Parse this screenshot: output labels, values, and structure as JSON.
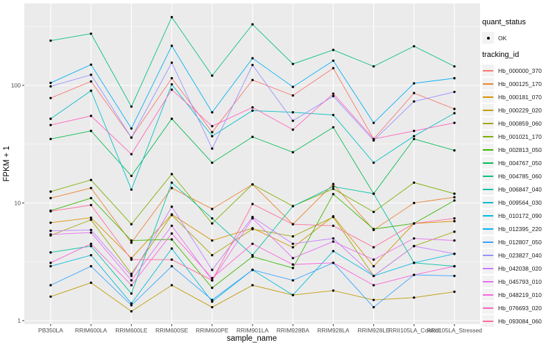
{
  "figure": {
    "background": "#FFFFFF",
    "panel_background": "#EBEBEB",
    "grid_color": "#FFFFFF",
    "axis_text_color": "#4D4D4D",
    "axis_title_color": "#000000",
    "point_color": "#000000",
    "legend_key_background": "#F2F2F2"
  },
  "axes": {
    "x_title": "sample_name",
    "y_title": "FPKM + 1",
    "y_tick_labels": [
      "1",
      "10",
      "100"
    ]
  },
  "legend": {
    "quant_title": "quant_status",
    "quant_items": [
      {
        "label": "OK",
        "marker": "point"
      }
    ],
    "tracking_title": "tracking_id"
  },
  "chart_data": {
    "type": "line",
    "title": "",
    "xlabel": "sample_name",
    "ylabel": "FPKM + 1",
    "y_scale": "log10",
    "ylim": [
      1,
      460
    ],
    "y_ticks": [
      1,
      10,
      100
    ],
    "y_minor_ticks": [
      3.162,
      31.62,
      316.2
    ],
    "grid": true,
    "legend_position": "right",
    "marker": "black point (quant_status OK)",
    "categories": [
      "PB350LA",
      "RRIM600LA",
      "RRIM600LE",
      "RRIM600SE",
      "RRIM600PE",
      "RRIM901LA",
      "RRIM928BA",
      "RRIM928LA",
      "RRIM928LE",
      "RRII105LA_Control",
      "RRII105LA_Stressed"
    ],
    "series": [
      {
        "name": "Hb_000000_370",
        "color": "#F8766D",
        "values": [
          78,
          108,
          36,
          115,
          40,
          111,
          82,
          140,
          35,
          86,
          63
        ]
      },
      {
        "name": "Hb_000125_170",
        "color": "#EA8331",
        "values": [
          11,
          13.4,
          4.6,
          13.4,
          8.9,
          14.4,
          6.6,
          14.5,
          5.9,
          10,
          11.2
        ]
      },
      {
        "name": "Hb_000181_070",
        "color": "#D89000",
        "values": [
          6.8,
          7.5,
          3.4,
          8,
          4.8,
          6.1,
          4.2,
          7.7,
          2.9,
          6.7,
          7
        ]
      },
      {
        "name": "Hb_000229_020",
        "color": "#C09B00",
        "values": [
          1.6,
          2.1,
          1.2,
          2,
          1.3,
          2,
          1.65,
          1.8,
          1.5,
          1.57,
          1.76
        ]
      },
      {
        "name": "Hb_000859_060",
        "color": "#A3A500",
        "values": [
          5.3,
          7.2,
          2.5,
          7.9,
          3.6,
          6,
          5.2,
          7.6,
          2.4,
          4.3,
          5.7
        ]
      },
      {
        "name": "Hb_001021_170",
        "color": "#7CAE00",
        "values": [
          12.5,
          15.7,
          6.6,
          17.6,
          6.7,
          14.4,
          9.4,
          13.2,
          8.4,
          14.9,
          12
        ]
      },
      {
        "name": "Hb_002813_050",
        "color": "#39B600",
        "values": [
          8.6,
          11,
          4.8,
          4.9,
          1.9,
          3.5,
          2.8,
          11.9,
          6,
          6.7,
          10.5
        ]
      },
      {
        "name": "Hb_004767_050",
        "color": "#00BB4E",
        "values": [
          35,
          41,
          17,
          52,
          22,
          36.5,
          27,
          44,
          12,
          35,
          28
        ]
      },
      {
        "name": "Hb_004785_060",
        "color": "#00BF7D",
        "values": [
          240,
          275,
          66,
          380,
          121,
          330,
          152,
          200,
          145,
          215,
          145
        ]
      },
      {
        "name": "Hb_006847_040",
        "color": "#00C1A3",
        "values": [
          3.8,
          4.3,
          1.7,
          14.9,
          7.4,
          3.6,
          9.4,
          13.8,
          12,
          3.1,
          2.9
        ]
      },
      {
        "name": "Hb_009564_030",
        "color": "#00BFC4",
        "values": [
          52,
          90,
          13,
          102,
          37,
          61,
          59,
          56,
          22,
          37,
          58
        ]
      },
      {
        "name": "Hb_010172_090",
        "color": "#00BAE0",
        "values": [
          2.9,
          3.6,
          1.4,
          4.1,
          1.45,
          2.7,
          1.65,
          3.9,
          2.4,
          3.1,
          3.7
        ]
      },
      {
        "name": "Hb_012395_220",
        "color": "#00B0F6",
        "values": [
          105,
          150,
          43,
          217,
          59,
          170,
          97,
          162,
          48,
          104,
          115
        ]
      },
      {
        "name": "Hb_012807_050",
        "color": "#35A2FF",
        "values": [
          2,
          2.9,
          1.35,
          2.9,
          1.5,
          2.7,
          2.2,
          3.1,
          1.3,
          2.45,
          2.4
        ]
      },
      {
        "name": "Hb_023827_040",
        "color": "#9590FF",
        "values": [
          98,
          123,
          36,
          156,
          29,
          149,
          50,
          81,
          34,
          73,
          88
        ]
      },
      {
        "name": "Hb_042038_020",
        "color": "#C77CFF",
        "values": [
          5.8,
          5.9,
          2.4,
          9.3,
          2.7,
          7.6,
          4.5,
          5,
          2.4,
          4.3,
          3.7
        ]
      },
      {
        "name": "Hb_045793_010",
        "color": "#E76BF3",
        "values": [
          5.4,
          5.6,
          2.2,
          6.4,
          2.2,
          7.4,
          3.4,
          4.7,
          3.3,
          5,
          4.8
        ]
      },
      {
        "name": "Hb_048219_010",
        "color": "#FA62DB",
        "values": [
          3.1,
          4.5,
          2,
          5.5,
          2.3,
          4.5,
          3,
          3.1,
          2,
          2.45,
          2.9
        ]
      },
      {
        "name": "Hb_076693_020",
        "color": "#FF62BC",
        "values": [
          46,
          55,
          26,
          92,
          45,
          65,
          42,
          85,
          35,
          41,
          48
        ]
      },
      {
        "name": "Hb_093084_060",
        "color": "#FF6A98",
        "values": [
          8.5,
          9.6,
          3.3,
          3.3,
          2.2,
          9.8,
          6.6,
          6.4,
          4.2,
          6.7,
          7.4
        ]
      }
    ]
  }
}
